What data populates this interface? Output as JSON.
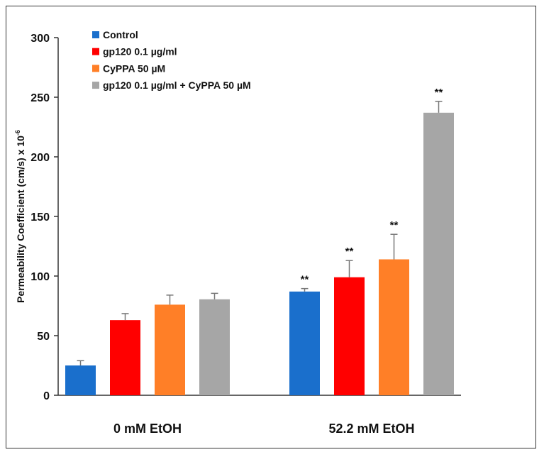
{
  "chart_data": {
    "type": "bar",
    "title": "",
    "xlabel": "",
    "ylabel": "Permeability Coefficient (cm/s) x 10",
    "ylabel_superscript": "-6",
    "ylim": [
      0,
      300
    ],
    "yticks": [
      0,
      50,
      100,
      150,
      200,
      250,
      300
    ],
    "categories": [
      "0  mM EtOH",
      "52.2 mM EtOH"
    ],
    "legend_position": "top-left",
    "series": [
      {
        "name": "Control",
        "color": "#1a6fcc",
        "values": [
          25,
          87
        ],
        "errors": [
          4,
          2.5
        ],
        "significance": [
          "",
          "**"
        ]
      },
      {
        "name": "gp120 0.1 µg/ml",
        "color": "#ff0000",
        "values": [
          63,
          99
        ],
        "errors": [
          5.5,
          14
        ],
        "significance": [
          "",
          "**"
        ]
      },
      {
        "name": "CyPPA 50 µM",
        "color": "#ff7f27",
        "values": [
          76,
          114
        ],
        "errors": [
          8,
          21
        ],
        "significance": [
          "",
          "**"
        ]
      },
      {
        "name": "gp120 0.1 µg/ml + CyPPA 50 µM",
        "color": "#a6a6a6",
        "values": [
          80.5,
          237
        ],
        "errors": [
          5,
          9.5
        ],
        "significance": [
          "",
          "**"
        ]
      }
    ]
  }
}
